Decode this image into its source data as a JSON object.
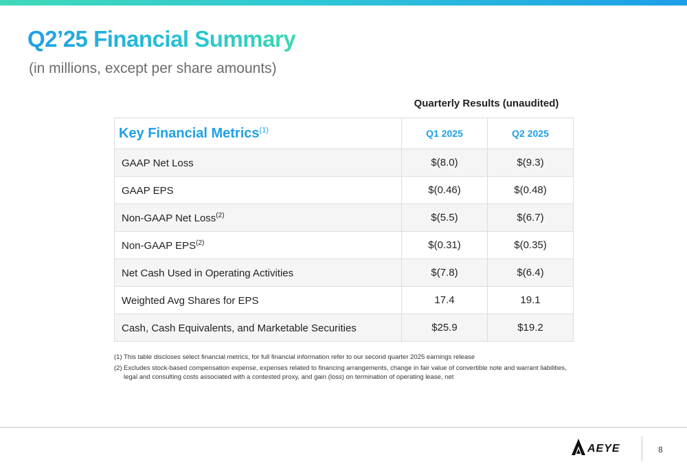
{
  "header": {
    "title": "Q2’25 Financial Summary",
    "subtitle": "(in millions, except per share amounts)",
    "accent_color": "#1ea0e6",
    "gradient_end_color": "#3dd8b4"
  },
  "table": {
    "caption": "Quarterly Results (unaudited)",
    "metric_header": "Key Financial Metrics",
    "metric_header_note": "(1)",
    "columns": [
      "Q1 2025",
      "Q2 2025"
    ],
    "rows": [
      {
        "label": "GAAP Net Loss",
        "note": "",
        "q1": "$(8.0)",
        "q2": "$(9.3)"
      },
      {
        "label": "GAAP EPS",
        "note": "",
        "q1": "$(0.46)",
        "q2": "$(0.48)"
      },
      {
        "label": "Non-GAAP Net Loss",
        "note": "(2)",
        "q1": "$(5.5)",
        "q2": "$(6.7)"
      },
      {
        "label": "Non-GAAP EPS",
        "note": "(2)",
        "q1": "$(0.31)",
        "q2": "$(0.35)"
      },
      {
        "label": "Net Cash Used in Operating Activities",
        "note": "",
        "q1": "$(7.8)",
        "q2": "$(6.4)"
      },
      {
        "label": "Weighted Avg Shares for EPS",
        "note": "",
        "q1": "17.4",
        "q2": "19.1"
      },
      {
        "label": "Cash, Cash Equivalents, and Marketable Securities",
        "note": "",
        "q1": "$25.9",
        "q2": "$19.2"
      }
    ]
  },
  "footnotes": [
    {
      "num": "(1)",
      "text": "This table discloses select financial metrics, for full financial information refer to our second quarter 2025 earnings release"
    },
    {
      "num": "(2)",
      "text": "Excludes stock-based compensation expense, expenses related to financing arrangements, change in fair value of convertible note and warrant liabilities, legal and consulting costs associated with a contested proxy, and gain (loss) on termination of operating lease, net"
    }
  ],
  "footer": {
    "logo_text": "AEYE",
    "logo_icon": "aeye-chevron-logo-icon",
    "page_number": "8"
  }
}
